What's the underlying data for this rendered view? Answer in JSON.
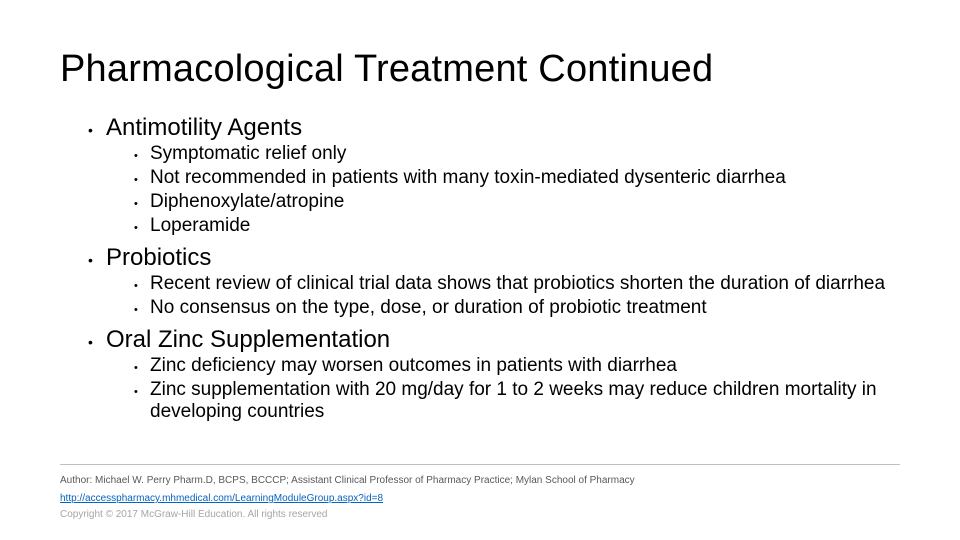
{
  "title": "Pharmacological Treatment Continued",
  "sections": [
    {
      "heading": "Antimotility Agents",
      "items": [
        "Symptomatic relief only",
        "Not recommended in patients with many toxin-mediated dysenteric diarrhea",
        "Diphenoxylate/atropine",
        "Loperamide"
      ]
    },
    {
      "heading": "Probiotics",
      "items": [
        "Recent review of clinical trial data shows that probiotics shorten the duration of diarrhea",
        "No consensus on the type, dose, or duration of probiotic treatment"
      ]
    },
    {
      "heading": "Oral Zinc Supplementation",
      "items": [
        "Zinc deficiency may worsen outcomes in patients with diarrhea",
        "Zinc  supplementation with 20 mg/day for 1 to 2 weeks may reduce children mortality in developing countries"
      ]
    }
  ],
  "footer": {
    "author": "Author: Michael W. Perry Pharm.D, BCPS, BCCCP; Assistant Clinical Professor of Pharmacy Practice; Mylan School of Pharmacy",
    "link": "http://accesspharmacy.mhmedical.com/LearningModuleGroup.aspx?id=8",
    "copyright": "Copyright © 2017 McGraw-Hill Education. All rights reserved"
  },
  "colors": {
    "background": "#ffffff",
    "text": "#000000",
    "footer_text": "#595959",
    "link": "#0563c1",
    "copyright": "#a6a6a6",
    "divider": "#bfbfbf"
  },
  "fonts": {
    "title_size": 38,
    "level1_size": 24,
    "level2_size": 19,
    "footer_size": 10
  }
}
